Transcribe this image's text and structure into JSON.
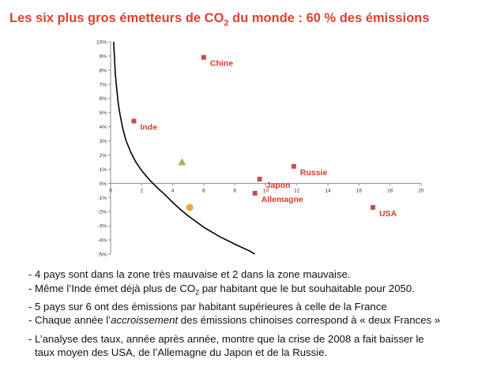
{
  "title": {
    "prefix": "Les six plus gros émetteurs de CO",
    "sub": "2",
    "suffix": " du monde : 60 % des émissions"
  },
  "chart_data": {
    "type": "scatter",
    "title": "",
    "xlabel": "",
    "ylabel": "",
    "xlim": [
      0,
      20
    ],
    "ylim": [
      -5,
      10
    ],
    "x_ticks": [
      0,
      2,
      4,
      6,
      8,
      10,
      12,
      14,
      16,
      18,
      20
    ],
    "y_ticks": [
      "10%",
      "9%",
      "8%",
      "7%",
      "6%",
      "5%",
      "4%",
      "3%",
      "2%",
      "1%",
      "0%",
      "-1%",
      "-2%",
      "-3%",
      "-4%",
      "-5%"
    ],
    "points": [
      {
        "label": "Chine",
        "x": 6.0,
        "y": 8.9,
        "marker": "square"
      },
      {
        "label": "Inde",
        "x": 1.5,
        "y": 4.4,
        "marker": "square"
      },
      {
        "label": "Russie",
        "x": 11.8,
        "y": 1.2,
        "marker": "square"
      },
      {
        "label": "Japon",
        "x": 9.6,
        "y": 0.3,
        "marker": "square"
      },
      {
        "label": "Allemagne",
        "x": 9.3,
        "y": -0.7,
        "marker": "square"
      },
      {
        "label": "USA",
        "x": 16.9,
        "y": -1.7,
        "marker": "square"
      },
      {
        "label": "",
        "x": 4.6,
        "y": 1.5,
        "marker": "triangle"
      },
      {
        "label": "",
        "x": 5.1,
        "y": -1.7,
        "marker": "circle"
      }
    ],
    "curve": {
      "x": [
        0.2,
        0.3,
        0.4,
        0.5,
        0.6,
        0.8,
        1.0,
        1.3,
        1.6,
        2.0,
        2.5,
        3.0,
        3.5,
        4.0,
        4.5,
        5.0,
        6.0,
        7.0,
        8.0,
        9.0,
        9.3
      ],
      "y": [
        10,
        7.8,
        6.6,
        5.6,
        4.9,
        3.8,
        3.0,
        2.2,
        1.55,
        0.9,
        0.25,
        -0.3,
        -0.8,
        -1.35,
        -1.85,
        -2.3,
        -3.1,
        -3.75,
        -4.3,
        -4.8,
        -5.0
      ]
    },
    "colors": {
      "square": "#c0504d",
      "triangle": "#9bbb59",
      "circle": "#f0a830",
      "label": "#d83a2a",
      "curve": "#000000"
    }
  },
  "bullets": [
    {
      "text": "- 4 pays sont dans la zone très mauvaise et 2 dans la zone mauvaise."
    },
    {
      "pre": "- Même l’Inde émet déjà plus de CO",
      "sub": "2",
      "post": " par habitant que le but souhaitable pour 2050."
    },
    {
      "text": "- 5 pays sur 6 ont des émissions par habitant supérieures à celle de la France"
    },
    {
      "pre": "- Chaque année l’",
      "em": "accroissement",
      "post": " des émissions chinoises correspond à « deux Frances »"
    },
    {
      "line1": "- L’analyse des taux, année après année, montre que la crise de 2008 a fait baisser le",
      "line2": "taux moyen des USA, de l’Allemagne du Japon et de la Russie."
    }
  ]
}
